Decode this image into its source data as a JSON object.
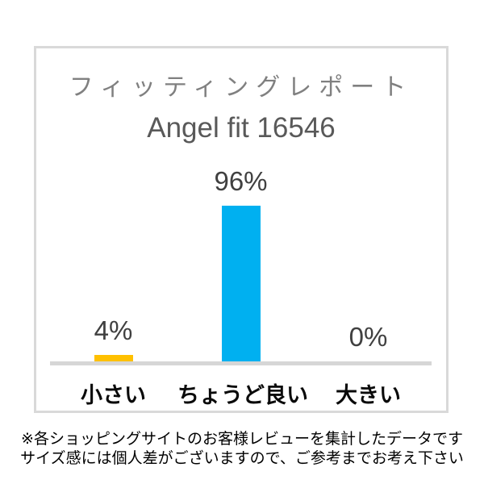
{
  "report": {
    "title": "フィッティングレポート",
    "subtitle": "Angel fit 16546"
  },
  "chart_data": {
    "type": "bar",
    "title": "フィッティングレポート",
    "subtitle": "Angel fit 16546",
    "categories": [
      "小さい",
      "ちょうど良い",
      "大きい"
    ],
    "values": [
      4,
      96,
      0
    ],
    "value_labels": [
      "4%",
      "96%",
      "0%"
    ],
    "bar_colors": [
      "#ffc000",
      "#00b0f0",
      "#00b0f0"
    ],
    "ylim": [
      0,
      100
    ],
    "grid": false,
    "legend": false,
    "axis_color": "#d6d6d6"
  },
  "footnote": {
    "line1": "※各ショッピングサイトのお客様レビューを集計したデータです",
    "line2": "サイズ感には個人差がございますので、ご参考までお考え下さい"
  },
  "colors": {
    "box_border": "#d9d9d9",
    "title_gray": "#808080",
    "subtitle_gray": "#595959",
    "value_label_gray": "#404040",
    "bar_yellow": "#ffc000",
    "bar_cyan": "#00b0f0"
  }
}
